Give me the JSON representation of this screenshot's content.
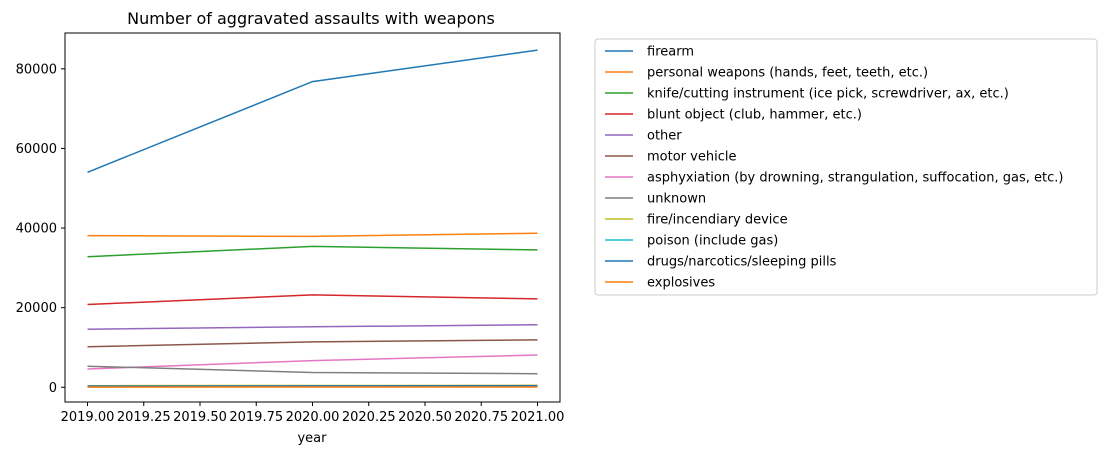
{
  "chart_data": {
    "type": "line",
    "title": "Number of aggravated assaults with weapons",
    "xlabel": "year",
    "ylabel": "",
    "x": [
      2019,
      2020,
      2021
    ],
    "xlim": [
      2018.9,
      2021.1
    ],
    "ylim": [
      -3700,
      89000
    ],
    "x_ticks": [
      2019.0,
      2019.25,
      2019.5,
      2019.75,
      2020.0,
      2020.25,
      2020.5,
      2020.75,
      2021.0
    ],
    "x_tick_labels": [
      "2019.00",
      "2019.25",
      "2019.50",
      "2019.75",
      "2020.00",
      "2020.25",
      "2020.50",
      "2020.75",
      "2021.00"
    ],
    "y_ticks": [
      0,
      20000,
      40000,
      60000,
      80000
    ],
    "y_tick_labels": [
      "0",
      "20000",
      "40000",
      "60000",
      "80000"
    ],
    "grid": false,
    "legend_position": "outside-right",
    "series": [
      {
        "name": "firearm",
        "color": "#1f77b4",
        "values": [
          54000,
          76800,
          84700
        ]
      },
      {
        "name": "personal weapons (hands, feet, teeth, etc.)",
        "color": "#ff7f0e",
        "values": [
          38100,
          37900,
          38700
        ]
      },
      {
        "name": "knife/cutting instrument (ice pick, screwdriver, ax, etc.)",
        "color": "#2ca02c",
        "values": [
          32800,
          35400,
          34500
        ]
      },
      {
        "name": "blunt object (club, hammer, etc.)",
        "color": "#d62728",
        "values": [
          20800,
          23200,
          22200
        ]
      },
      {
        "name": "other",
        "color": "#9467bd",
        "values": [
          14600,
          15200,
          15700
        ]
      },
      {
        "name": "motor vehicle",
        "color": "#8c564b",
        "values": [
          10200,
          11400,
          11900
        ]
      },
      {
        "name": "asphyxiation (by drowning, strangulation, suffocation, gas, etc.)",
        "color": "#e377c2",
        "values": [
          4600,
          6700,
          8100
        ]
      },
      {
        "name": "unknown",
        "color": "#7f7f7f",
        "values": [
          5300,
          3700,
          3400
        ]
      },
      {
        "name": "fire/incendiary device",
        "color": "#bcbd22",
        "values": [
          400,
          450,
          500
        ]
      },
      {
        "name": "poison (include gas)",
        "color": "#17becf",
        "values": [
          200,
          250,
          250
        ]
      },
      {
        "name": "drugs/narcotics/sleeping pills",
        "color": "#1f77b4",
        "values": [
          300,
          350,
          400
        ]
      },
      {
        "name": "explosives",
        "color": "#ff7f0e",
        "values": [
          50,
          60,
          60
        ]
      }
    ]
  }
}
